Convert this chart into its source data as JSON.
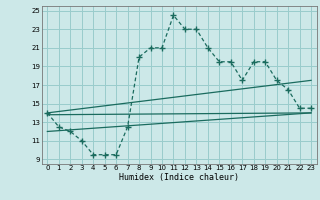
{
  "xlabel": "Humidex (Indice chaleur)",
  "background_color": "#cce8e8",
  "grid_color": "#99cccc",
  "line_color": "#1a6b5e",
  "xlim": [
    -0.5,
    23.5
  ],
  "ylim": [
    8.5,
    25.5
  ],
  "xticks": [
    0,
    1,
    2,
    3,
    4,
    5,
    6,
    7,
    8,
    9,
    10,
    11,
    12,
    13,
    14,
    15,
    16,
    17,
    18,
    19,
    20,
    21,
    22,
    23
  ],
  "yticks": [
    9,
    11,
    13,
    15,
    17,
    19,
    21,
    23,
    25
  ],
  "line1_x": [
    0,
    1,
    2,
    3,
    4,
    5,
    6,
    7,
    8,
    9,
    10,
    11,
    12,
    13,
    14,
    15,
    16,
    17,
    18,
    19,
    20,
    21,
    22,
    23
  ],
  "line1_y": [
    14.0,
    12.5,
    12.0,
    11.0,
    9.5,
    9.5,
    9.5,
    12.5,
    20.0,
    21.0,
    21.0,
    24.5,
    23.0,
    23.0,
    21.0,
    19.5,
    19.5,
    17.5,
    19.5,
    19.5,
    17.5,
    16.5,
    14.5,
    14.5
  ],
  "line2_x": [
    0,
    23
  ],
  "line2_y": [
    13.8,
    14.0
  ],
  "line3_x": [
    0,
    23
  ],
  "line3_y": [
    12.0,
    14.0
  ],
  "line4_x": [
    0,
    23
  ],
  "line4_y": [
    14.0,
    17.5
  ]
}
